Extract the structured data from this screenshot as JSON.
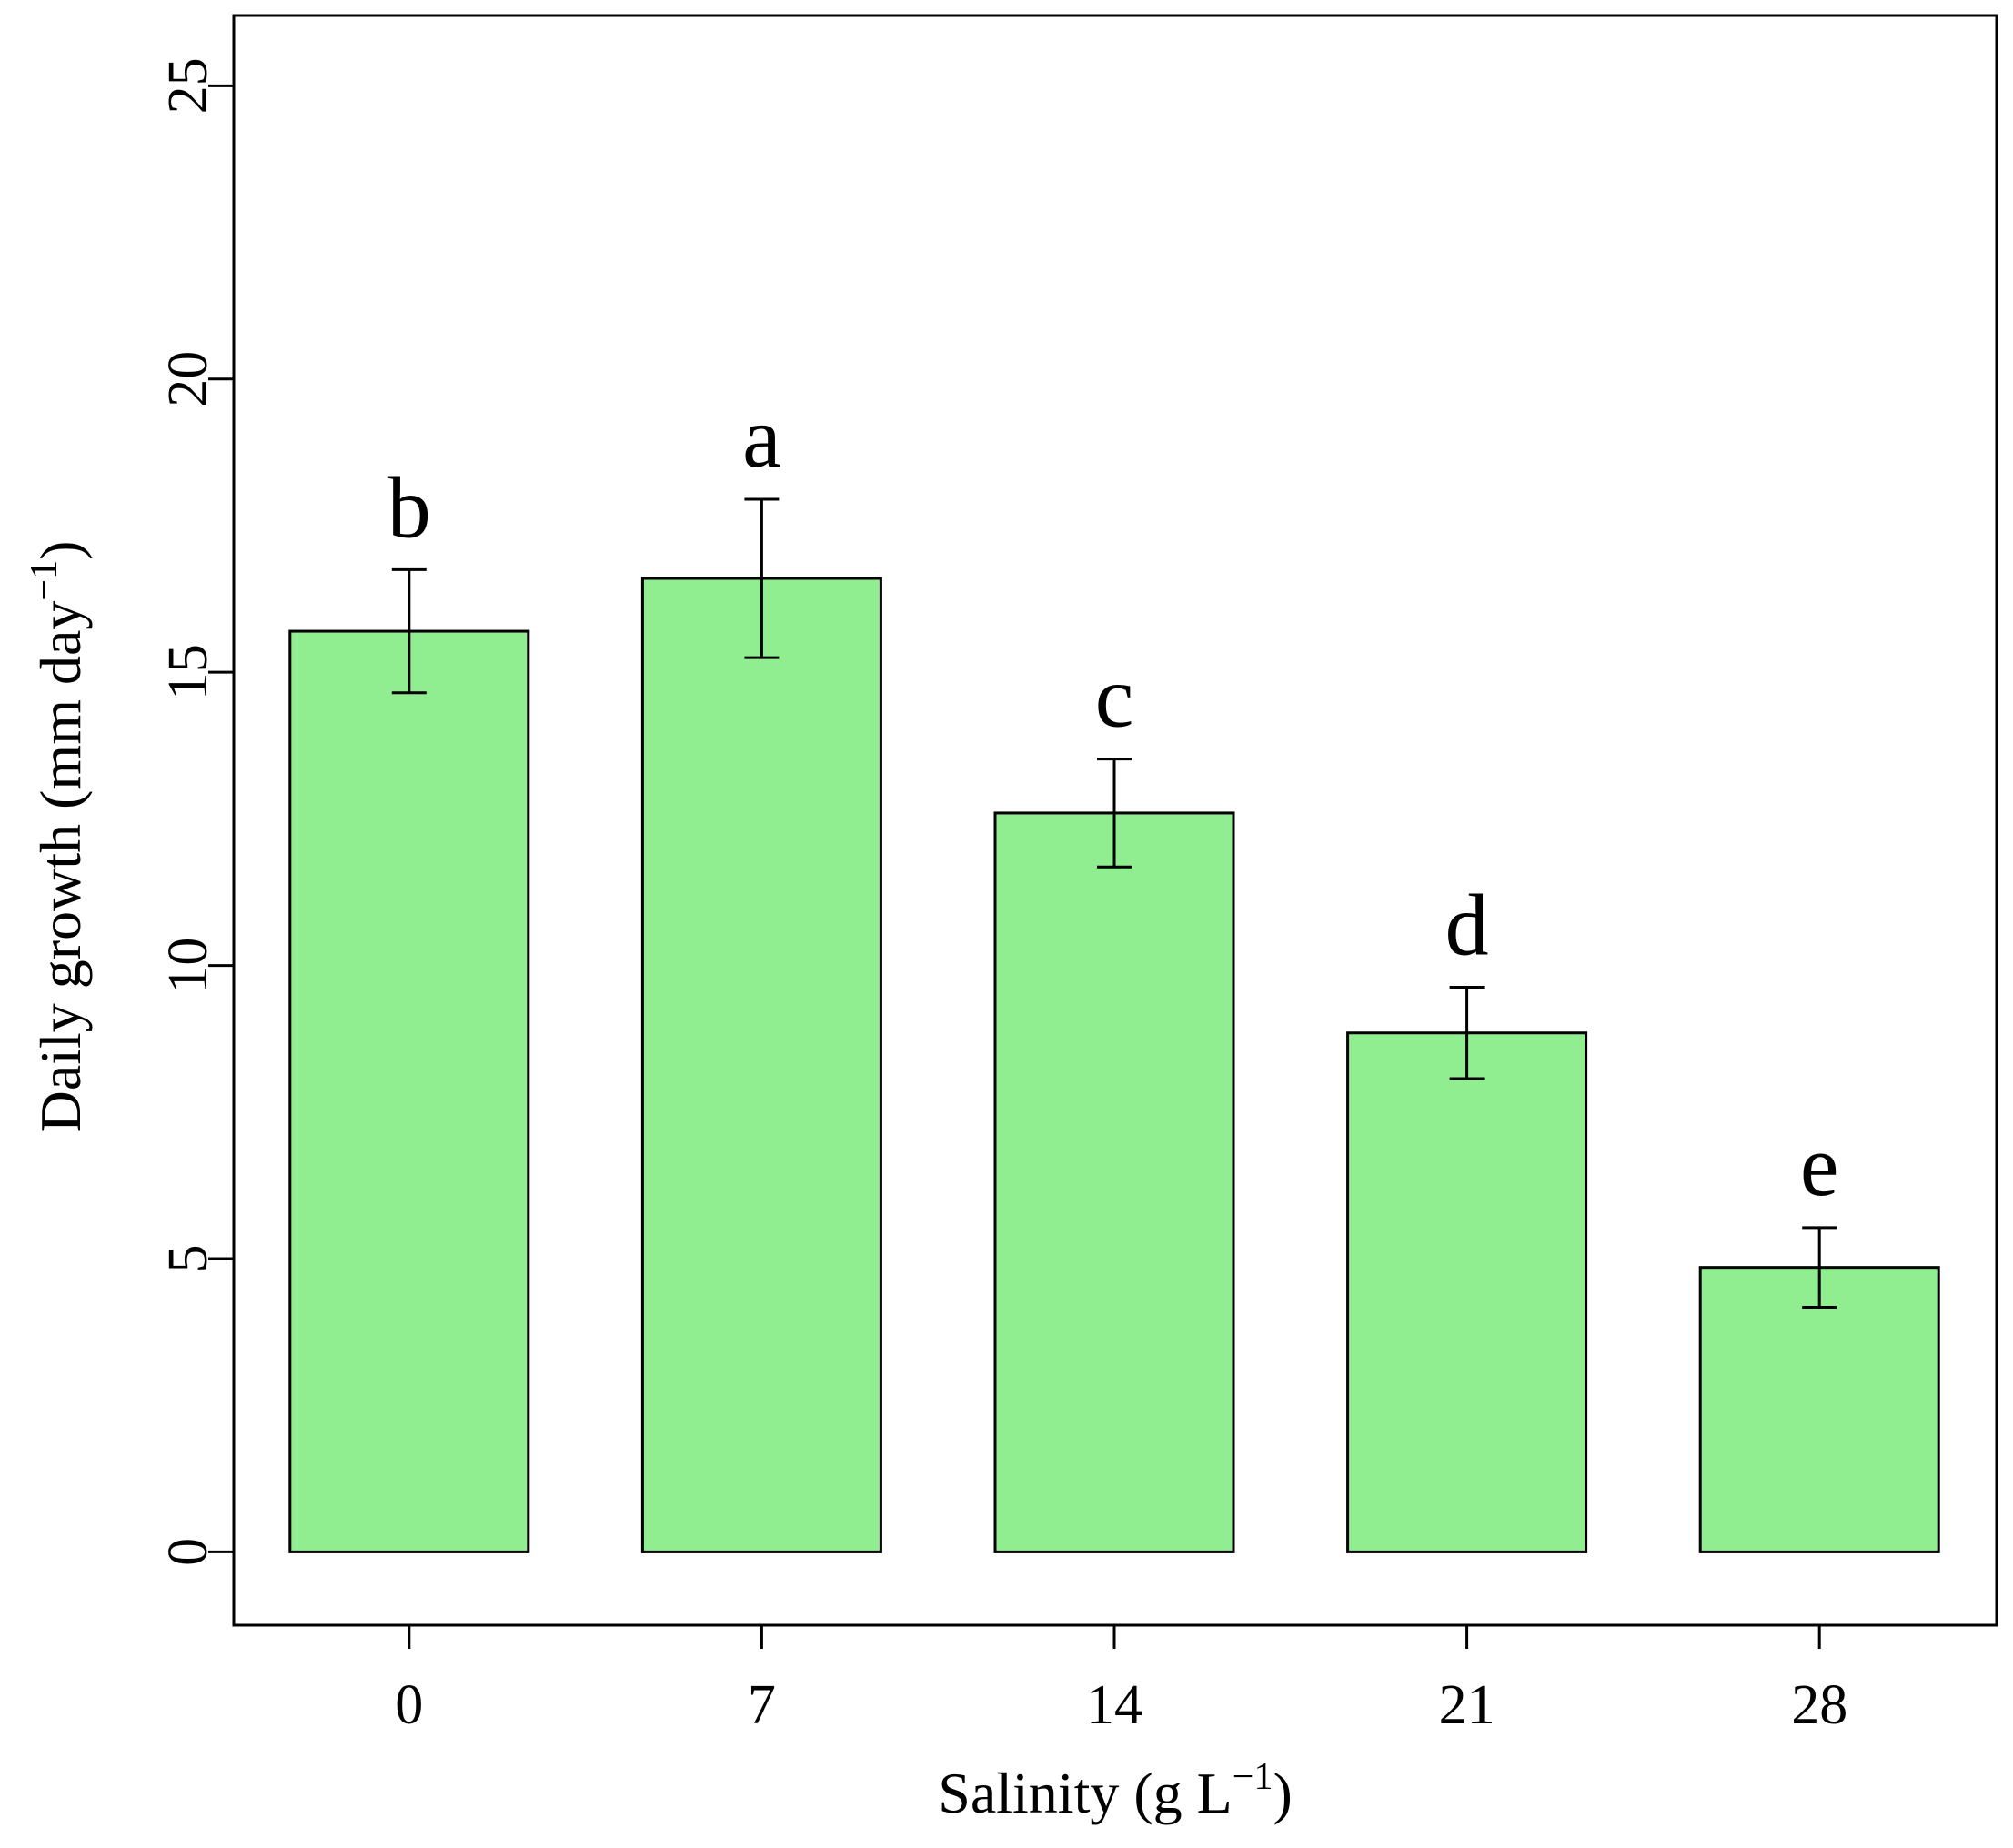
{
  "chart_data": {
    "type": "bar",
    "categories": [
      "0",
      "7",
      "14",
      "21",
      "28"
    ],
    "values": [
      15.7,
      16.6,
      12.6,
      8.85,
      4.85
    ],
    "errors": [
      1.05,
      1.35,
      0.92,
      0.78,
      0.68
    ],
    "significance_letters": [
      "b",
      "a",
      "c",
      "d",
      "e"
    ],
    "xlabel": "Salinity (g  L",
    "xlabel_sup": "−1",
    "xlabel_end": ")",
    "ylabel": "Daily growth (mm  day",
    "ylabel_sup": "−1",
    "ylabel_end": ")",
    "ylim": [
      -1.25,
      26.2
    ],
    "yticks": [
      0,
      5,
      10,
      15,
      20,
      25
    ],
    "bar_color": "#90ee90",
    "grid": false
  }
}
